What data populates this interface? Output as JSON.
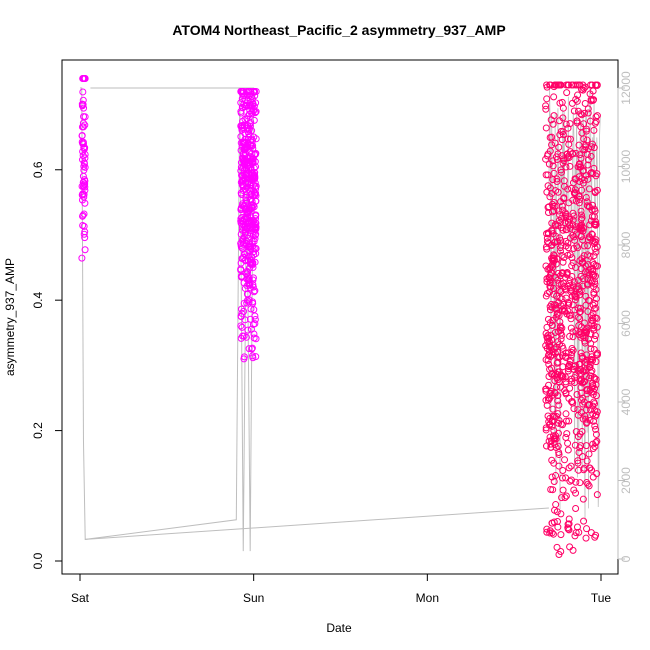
{
  "chart_data": {
    "type": "scatter",
    "title": "ATOM4 Northeast_Pacific_2 asymmetry_937_AMP",
    "xlabel": "Date",
    "ylabel": "asymmetry_937_AMP",
    "x_tick_labels": [
      "Sat",
      "Sun",
      "Mon",
      "Tue"
    ],
    "x_range_days": [
      0,
      3
    ],
    "y_ticks": [
      0.0,
      0.2,
      0.4,
      0.6
    ],
    "y_tick_labels": [
      "0.0",
      "0.2",
      "0.4",
      "0.6"
    ],
    "ylim": [
      0.0,
      0.73
    ],
    "y2_ticks": [
      0,
      2000,
      4000,
      6000,
      8000,
      10000,
      12000
    ],
    "y2_tick_labels": [
      "0",
      "2000",
      "4000",
      "6000",
      "8000",
      "10000",
      "12000"
    ],
    "y2lim": [
      0,
      12000
    ],
    "grid": false,
    "colors": {
      "early_points": "#ff00ff",
      "late_points": "#ff0066",
      "secondary_line": "#bebebe",
      "right_axis": "#bebebe"
    },
    "series": [
      {
        "marker": "open-circle",
        "clusters": [
          {
            "x_center": 0.02,
            "x_spread": 0.01,
            "y_min": 0.44,
            "y_max": 0.74,
            "count": 70
          },
          {
            "x_center": 0.97,
            "x_spread": 0.045,
            "y_min": 0.31,
            "y_max": 0.72,
            "count": 450
          },
          {
            "x_center": 2.83,
            "x_spread": 0.15,
            "y_min": 0.01,
            "y_max": 0.73,
            "count": 900
          }
        ]
      }
    ],
    "secondary_line": {
      "points": [
        [
          0.0,
          12000
        ],
        [
          0.01,
          12000
        ],
        [
          0.02,
          3000
        ],
        [
          0.03,
          500
        ],
        [
          0.9,
          1000
        ],
        [
          0.92,
          12000
        ],
        [
          0.94,
          200
        ],
        [
          0.96,
          10000
        ],
        [
          0.98,
          200
        ],
        [
          1.0,
          12000
        ],
        [
          0.06,
          12000
        ]
      ]
    }
  }
}
